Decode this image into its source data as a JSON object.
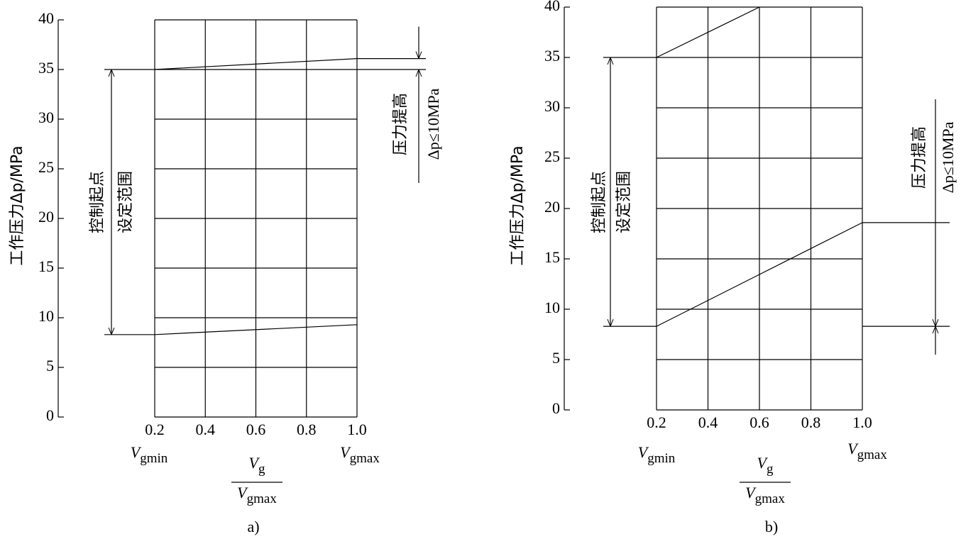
{
  "chart_data": [
    {
      "type": "line",
      "caption": "a)",
      "y_label": "工作压力Δp/MPa",
      "x": [
        0.2,
        1.0
      ],
      "series": [
        {
          "color": "#000000",
          "values": [
            8.3,
            9.3
          ]
        },
        {
          "color": "#000000",
          "values": [
            35,
            36.1
          ]
        }
      ],
      "xlim": [
        0.2,
        1.0
      ],
      "xticks": [
        0.2,
        0.4,
        0.6,
        0.8,
        {
          "value": 1.0,
          "label": "1.0"
        }
      ],
      "ylim": [
        0,
        40
      ],
      "yticks": [
        0,
        5,
        10,
        15,
        20,
        25,
        30,
        35,
        40
      ],
      "grid": true,
      "x_end_labels": [
        {
          "base": "V",
          "sub": "gmin"
        },
        {
          "base": "V",
          "sub": "gmax"
        }
      ],
      "x_label": {
        "numerator": {
          "base": "V",
          "sub": "g"
        },
        "denominator": {
          "base": "V",
          "sub": "gmax"
        }
      },
      "range_label": [
        "控制起点",
        "设定范围"
      ],
      "raise_label": "压力提高",
      "raise_limit": "Δp≤10MPa"
    },
    {
      "type": "line",
      "caption": "b)",
      "y_label": "工作压力Δp/MPa",
      "x": [
        0.2,
        0.6,
        1.0
      ],
      "series": [
        {
          "color": "#000000",
          "values": [
            8.3,
            13.45,
            18.6
          ]
        },
        {
          "color": "#000000",
          "values": [
            35,
            40,
            null
          ]
        }
      ],
      "xlim": [
        0.2,
        1.0
      ],
      "xticks": [
        0.2,
        0.4,
        0.6,
        0.8,
        {
          "value": 1.0,
          "label": "1.0"
        }
      ],
      "ylim": [
        0,
        40
      ],
      "yticks": [
        0,
        5,
        10,
        15,
        20,
        25,
        30,
        35,
        40
      ],
      "grid": true,
      "x_end_labels": [
        {
          "base": "V",
          "sub": "gmin"
        },
        {
          "base": "V",
          "sub": "gmax"
        }
      ],
      "x_label": {
        "numerator": {
          "base": "V",
          "sub": "g"
        },
        "denominator": {
          "base": "V",
          "sub": "gmax"
        }
      },
      "range_label": [
        "控制起点",
        "设定范围"
      ],
      "raise_label": "压力提高",
      "raise_limit": "Δp≤10MPa"
    }
  ]
}
